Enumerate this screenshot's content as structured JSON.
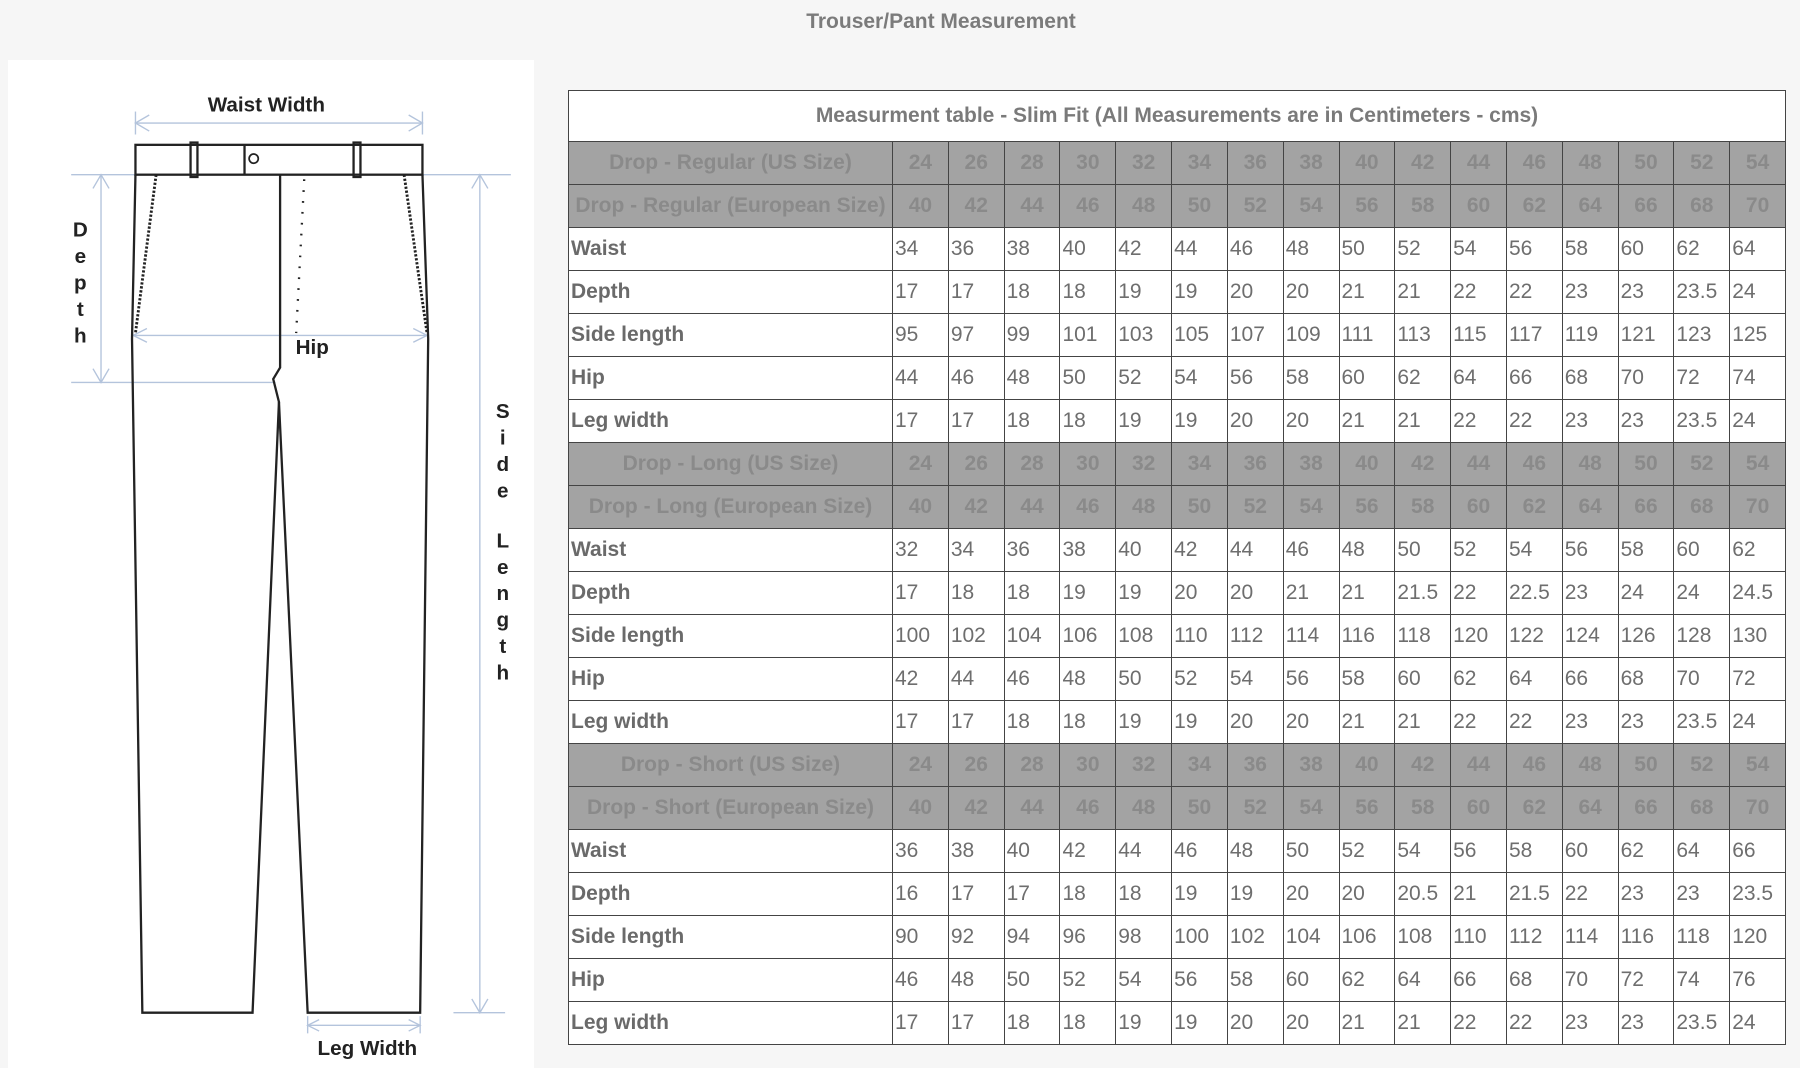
{
  "page_title": "Trouser/Pant Measurement",
  "diagram": {
    "waist_width": "Waist Width",
    "depth": "Depth",
    "hip": "Hip",
    "side_length": "Side Length",
    "leg_width": "Leg Width"
  },
  "table": {
    "caption": "Measurment table - Slim Fit (All Measurements are in Centimeters - cms)",
    "sections": [
      {
        "us_label": "Drop - Regular (US Size)",
        "us_sizes": [
          "24",
          "26",
          "28",
          "30",
          "32",
          "34",
          "36",
          "38",
          "40",
          "42",
          "44",
          "46",
          "48",
          "50",
          "52",
          "54"
        ],
        "eu_label": "Drop - Regular (European Size)",
        "eu_sizes": [
          "40",
          "42",
          "44",
          "46",
          "48",
          "50",
          "52",
          "54",
          "56",
          "58",
          "60",
          "62",
          "64",
          "66",
          "68",
          "70"
        ],
        "rows": [
          {
            "label": "Waist",
            "values": [
              "34",
              "36",
              "38",
              "40",
              "42",
              "44",
              "46",
              "48",
              "50",
              "52",
              "54",
              "56",
              "58",
              "60",
              "62",
              "64"
            ]
          },
          {
            "label": "Depth",
            "values": [
              "17",
              "17",
              "18",
              "18",
              "19",
              "19",
              "20",
              "20",
              "21",
              "21",
              "22",
              "22",
              "23",
              "23",
              "23.5",
              "24"
            ]
          },
          {
            "label": "Side length",
            "values": [
              "95",
              "97",
              "99",
              "101",
              "103",
              "105",
              "107",
              "109",
              "111",
              "113",
              "115",
              "117",
              "119",
              "121",
              "123",
              "125"
            ]
          },
          {
            "label": "Hip",
            "values": [
              "44",
              "46",
              "48",
              "50",
              "52",
              "54",
              "56",
              "58",
              "60",
              "62",
              "64",
              "66",
              "68",
              "70",
              "72",
              "74"
            ]
          },
          {
            "label": "Leg width",
            "values": [
              "17",
              "17",
              "18",
              "18",
              "19",
              "19",
              "20",
              "20",
              "21",
              "21",
              "22",
              "22",
              "23",
              "23",
              "23.5",
              "24"
            ]
          }
        ]
      },
      {
        "us_label": "Drop - Long (US Size)",
        "us_sizes": [
          "24",
          "26",
          "28",
          "30",
          "32",
          "34",
          "36",
          "38",
          "40",
          "42",
          "44",
          "46",
          "48",
          "50",
          "52",
          "54"
        ],
        "eu_label": "Drop - Long (European Size)",
        "eu_sizes": [
          "40",
          "42",
          "44",
          "46",
          "48",
          "50",
          "52",
          "54",
          "56",
          "58",
          "60",
          "62",
          "64",
          "66",
          "68",
          "70"
        ],
        "rows": [
          {
            "label": "Waist",
            "values": [
              "32",
              "34",
              "36",
              "38",
              "40",
              "42",
              "44",
              "46",
              "48",
              "50",
              "52",
              "54",
              "56",
              "58",
              "60",
              "62"
            ]
          },
          {
            "label": "Depth",
            "values": [
              "17",
              "18",
              "18",
              "19",
              "19",
              "20",
              "20",
              "21",
              "21",
              "21.5",
              "22",
              "22.5",
              "23",
              "24",
              "24",
              "24.5"
            ]
          },
          {
            "label": "Side length",
            "values": [
              "100",
              "102",
              "104",
              "106",
              "108",
              "110",
              "112",
              "114",
              "116",
              "118",
              "120",
              "122",
              "124",
              "126",
              "128",
              "130"
            ]
          },
          {
            "label": "Hip",
            "values": [
              "42",
              "44",
              "46",
              "48",
              "50",
              "52",
              "54",
              "56",
              "58",
              "60",
              "62",
              "64",
              "66",
              "68",
              "70",
              "72"
            ]
          },
          {
            "label": "Leg width",
            "values": [
              "17",
              "17",
              "18",
              "18",
              "19",
              "19",
              "20",
              "20",
              "21",
              "21",
              "22",
              "22",
              "23",
              "23",
              "23.5",
              "24"
            ]
          }
        ]
      },
      {
        "us_label": "Drop - Short (US Size)",
        "us_sizes": [
          "24",
          "26",
          "28",
          "30",
          "32",
          "34",
          "36",
          "38",
          "40",
          "42",
          "44",
          "46",
          "48",
          "50",
          "52",
          "54"
        ],
        "eu_label": "Drop - Short (European Size)",
        "eu_sizes": [
          "40",
          "42",
          "44",
          "46",
          "48",
          "50",
          "52",
          "54",
          "56",
          "58",
          "60",
          "62",
          "64",
          "66",
          "68",
          "70"
        ],
        "rows": [
          {
            "label": "Waist",
            "values": [
              "36",
              "38",
              "40",
              "42",
              "44",
              "46",
              "48",
              "50",
              "52",
              "54",
              "56",
              "58",
              "60",
              "62",
              "64",
              "66"
            ]
          },
          {
            "label": "Depth",
            "values": [
              "16",
              "17",
              "17",
              "18",
              "18",
              "19",
              "19",
              "20",
              "20",
              "20.5",
              "21",
              "21.5",
              "22",
              "23",
              "23",
              "23.5"
            ]
          },
          {
            "label": "Side length",
            "values": [
              "90",
              "92",
              "94",
              "96",
              "98",
              "100",
              "102",
              "104",
              "106",
              "108",
              "110",
              "112",
              "114",
              "116",
              "118",
              "120"
            ]
          },
          {
            "label": "Hip",
            "values": [
              "46",
              "48",
              "50",
              "52",
              "54",
              "56",
              "58",
              "60",
              "62",
              "64",
              "66",
              "68",
              "70",
              "72",
              "74",
              "76"
            ]
          },
          {
            "label": "Leg width",
            "values": [
              "17",
              "17",
              "18",
              "18",
              "19",
              "19",
              "20",
              "20",
              "21",
              "21",
              "22",
              "22",
              "23",
              "23",
              "23.5",
              "24"
            ]
          }
        ]
      }
    ]
  }
}
